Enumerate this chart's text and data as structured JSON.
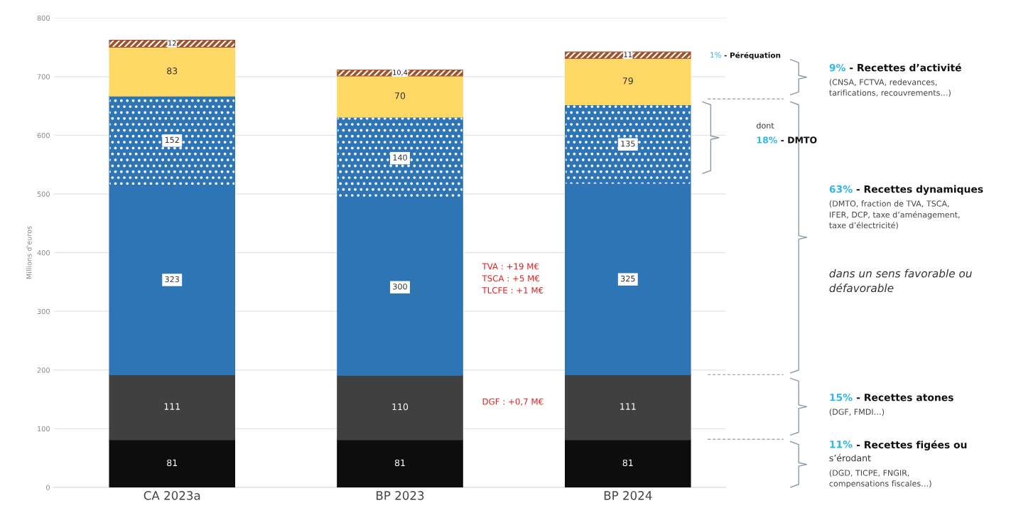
{
  "chart_data": {
    "type": "bar",
    "stacked": true,
    "ylabel": "Millions d'euros",
    "categories": [
      "CA 2023a",
      "BP 2023",
      "BP 2024"
    ],
    "series": [
      {
        "color": "#0d0d0d",
        "values": [
          81,
          81,
          81
        ]
      },
      {
        "color": "#404040",
        "values": [
          111,
          110,
          111
        ]
      },
      {
        "color": "#2e75b6",
        "values": [
          323,
          300,
          325
        ]
      },
      {
        "color": "#2e75b6",
        "values": [
          152,
          140,
          135
        ]
      },
      {
        "color": "#ffd966",
        "values": [
          83,
          70,
          79
        ]
      },
      {
        "color": "#a0522d",
        "values": [
          12,
          10.4,
          11
        ],
        "value_labels": [
          "12",
          "10,4",
          "11"
        ]
      }
    ],
    "ylim": [
      0,
      800
    ],
    "yticks": [
      0,
      100,
      200,
      300,
      400,
      500,
      600,
      700,
      800
    ],
    "grid": "y",
    "data_labels": true,
    "annotations": [
      "1% - Péréquation",
      "9% - Recettes d’activité\n(CNSA, FCTVA, redevances,\ntarifications, recouvrements…)",
      "dont\n18% - DMTO",
      "63% - Recettes dynamiques\n(DMTO, fraction de TVA, TSCA,\nIFER, DCP, taxe d’aménagement,\ntaxe d’électricité)",
      "dans un sens favorable ou\ndéfavorable",
      "15% - Recettes atones\n(DGF, FMDI…)",
      "11% - Recettes figées ou\ns’érodant\n(DGD, TICPE, FNGIR,\ncompensations fiscales…)",
      "TVA : +19 M€\nTSCA : +5 M€\nTLCFE : +1 M€",
      "DGF : +0,7 M€"
    ]
  }
}
